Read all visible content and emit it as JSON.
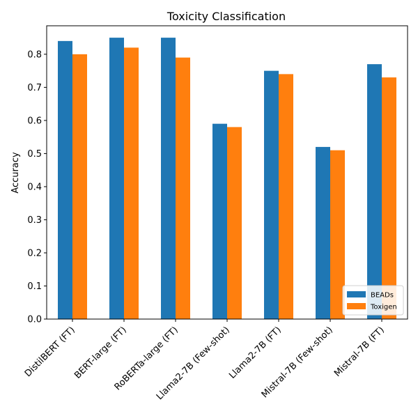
{
  "chart_data": {
    "type": "bar",
    "title": "Toxicity Classification",
    "xlabel": "",
    "ylabel": "Accuracy",
    "ylim": [
      0,
      0.886
    ],
    "yticks": [
      "0.0",
      "0.1",
      "0.2",
      "0.3",
      "0.4",
      "0.5",
      "0.6",
      "0.7",
      "0.8"
    ],
    "categories": [
      "DistilBERT (FT)",
      "BERT-large (FT)",
      "RoBERTa-large (FT)",
      "Llama2-7B (Few-shot)",
      "Llama2-7B (FT)",
      "Mistral-7B (Few-shot)",
      "Mistral-7B (FT)"
    ],
    "series": [
      {
        "name": "BEADs",
        "color": "#1f77b4",
        "values": [
          0.84,
          0.85,
          0.85,
          0.59,
          0.75,
          0.52,
          0.77
        ]
      },
      {
        "name": "Toxigen",
        "color": "#ff7f0e",
        "values": [
          0.8,
          0.82,
          0.79,
          0.58,
          0.74,
          0.51,
          0.73
        ]
      }
    ],
    "legend_position": "bottom-right",
    "grid": false
  }
}
